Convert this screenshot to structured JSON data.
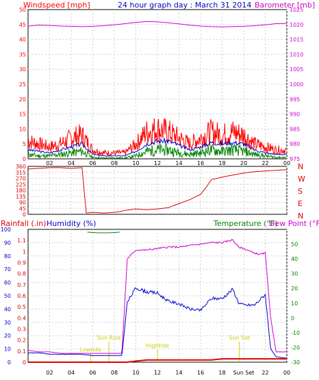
{
  "title": "24 hour graph day : March 31 2014",
  "colors": {
    "wind": "#ff0000",
    "windAvg": "#0000cc",
    "windLow": "#008000",
    "baro": "#cc00cc",
    "dir": "#dd0000",
    "rain": "#dd0000",
    "humidity": "#0000cc",
    "temp": "#008000",
    "dew": "#cc00cc",
    "marker": "#cccc00"
  },
  "chart_data": [
    {
      "type": "line",
      "left_label": "Windspeed [mph]",
      "right_label": "Barometer [mb]",
      "ylim_left": [
        0,
        50
      ],
      "ylim_right": [
        975,
        1025
      ],
      "left_ticks": [
        "0",
        "5",
        "10",
        "15",
        "20",
        "25",
        "30",
        "35",
        "40",
        "45",
        "50"
      ],
      "right_ticks": [
        "975",
        "980",
        "985",
        "990",
        "995",
        "1000",
        "1005",
        "1010",
        "1015",
        "1020",
        "1025"
      ],
      "x_ticks": [
        "02",
        "04",
        "06",
        "08",
        "10",
        "12",
        "14",
        "16",
        "18",
        "20",
        "22",
        "00"
      ],
      "x": [
        0,
        1,
        2,
        3,
        4,
        5,
        6,
        7,
        8,
        9,
        10,
        11,
        12,
        13,
        14,
        15,
        16,
        17,
        18,
        19,
        20,
        21,
        22,
        23,
        24
      ],
      "series": [
        {
          "key": "wind_gust",
          "values": [
            6,
            5,
            4,
            5,
            7,
            8,
            3,
            2,
            2,
            2,
            5,
            9,
            10,
            9,
            7,
            5,
            7,
            9,
            8,
            9,
            8,
            5,
            4,
            3,
            3
          ]
        },
        {
          "key": "wind_avg",
          "values": [
            3,
            2.5,
            2,
            3,
            4,
            5,
            1.5,
            1,
            1,
            1,
            2.5,
            5,
            6,
            6,
            4.5,
            3,
            4,
            5.5,
            5,
            5.5,
            5,
            3,
            2,
            1.5,
            1.5
          ]
        },
        {
          "key": "wind_low",
          "values": [
            1.5,
            1,
            1,
            1.5,
            2,
            2.5,
            0.5,
            0.3,
            0.3,
            0.3,
            1,
            2.5,
            3,
            3,
            2,
            1.5,
            2,
            3,
            2.5,
            3,
            2.5,
            1.5,
            1,
            0.5,
            0.5
          ]
        },
        {
          "key": "barometer",
          "values": [
            1019.5,
            1019.8,
            1019.7,
            1019.5,
            1019.4,
            1019.3,
            1019.4,
            1019.6,
            1019.9,
            1020.3,
            1020.7,
            1021,
            1020.9,
            1020.6,
            1020.2,
            1019.8,
            1019.5,
            1019.3,
            1019.2,
            1019.3,
            1019.4,
            1019.6,
            1019.9,
            1020.3,
            1020.4
          ]
        }
      ]
    },
    {
      "type": "line",
      "right_label": "Wind direction",
      "ylim": [
        0,
        360
      ],
      "left_ticks": [
        "0",
        "45",
        "90",
        "135",
        "180",
        "225",
        "270",
        "315",
        "360"
      ],
      "compass": [
        "N",
        "W",
        "S",
        "E",
        "N"
      ],
      "x": [
        0,
        1,
        2,
        3,
        4,
        5,
        5.4,
        6,
        7,
        8,
        8.5,
        9,
        10,
        11,
        12,
        13,
        14,
        15,
        16,
        16.5,
        17,
        18,
        19,
        20,
        21,
        22,
        23,
        24
      ],
      "series": [
        {
          "key": "direction",
          "values": [
            340,
            345,
            350,
            350,
            345,
            350,
            10,
            15,
            10,
            15,
            20,
            30,
            40,
            35,
            40,
            50,
            80,
            110,
            150,
            200,
            260,
            280,
            295,
            310,
            320,
            325,
            330,
            335
          ]
        }
      ]
    },
    {
      "type": "line",
      "left_label": "Rainfall (.in)",
      "left_label_2": "Humidity (%)",
      "right_label": "Temperature (°F)",
      "right_label_2": "Dew Point (°F)",
      "ylim_left": [
        0,
        100
      ],
      "ylim_rain": [
        0,
        1.2
      ],
      "ylim_right": [
        -30,
        60
      ],
      "left_ticks": [
        "0",
        "10",
        "20",
        "30",
        "40",
        "50",
        "60",
        "70",
        "80",
        "90",
        "100"
      ],
      "rain_ticks": [
        "0",
        "0.1",
        "0.2",
        "0.3",
        "0.4",
        "0.5",
        "0.6",
        "0.7",
        "0.8",
        "0.9",
        "1",
        "1.1"
      ],
      "right_ticks": [
        "-30",
        "-20",
        "-10",
        "0",
        "10",
        "20",
        "30",
        "40",
        "50"
      ],
      "x_ticks": [
        "02",
        "04",
        "06",
        "08",
        "10",
        "12",
        "14",
        "16",
        "18",
        "Sun Set",
        "22",
        "00"
      ],
      "markers": [
        {
          "label": "Sun Rise",
          "x": 7.5,
          "pos": 0.17
        },
        {
          "label": "Lowtide",
          "x": 5.8,
          "pos": 0.08
        },
        {
          "label": "Hightide",
          "x": 12.0,
          "pos": 0.11
        },
        {
          "label": "Sun Set",
          "x": 19.6,
          "pos": 0.17
        }
      ],
      "x": [
        0,
        1,
        2,
        3,
        4,
        5,
        6,
        7,
        8,
        8.7,
        9.2,
        10,
        11,
        12,
        13,
        14,
        15,
        16,
        17,
        18,
        19,
        19.5,
        20,
        21,
        21.5,
        22,
        22.5,
        23,
        24
      ],
      "series": [
        {
          "key": "temperature",
          "values": [
            -22,
            -23,
            -23,
            -24,
            -24,
            -24,
            -24,
            -24,
            -24,
            -24,
            40,
            46,
            46,
            47,
            48,
            48,
            49,
            50,
            51,
            51,
            53,
            48,
            47,
            44,
            43,
            44,
            0,
            -23,
            -23
          ]
        },
        {
          "key": "humidity",
          "values": [
            7,
            7,
            6,
            6,
            6,
            6,
            5,
            5,
            5,
            5,
            45,
            56,
            53,
            52,
            46,
            44,
            40,
            39,
            48,
            48,
            55,
            45,
            43,
            43,
            47,
            51,
            10,
            4,
            3
          ]
        },
        {
          "key": "rain",
          "values": [
            0,
            0,
            0,
            0,
            0,
            0,
            0,
            0,
            0,
            0,
            0,
            0.01,
            0.02,
            0.02,
            0.02,
            0.02,
            0.02,
            0.02,
            0.02,
            0.03,
            0.03,
            0.03,
            0.03,
            0.03,
            0.03,
            0.03,
            0.03,
            0.03,
            0.03
          ]
        },
        {
          "key": "dewpoint",
          "values": [
            null,
            null,
            null,
            null,
            null,
            null,
            null,
            null,
            null,
            null,
            null,
            null,
            null,
            null,
            null,
            null,
            null,
            null,
            null,
            null,
            null,
            null,
            null,
            null,
            null,
            null,
            null,
            null,
            null
          ],
          "visible_top": [
            58,
            57,
            57,
            58
          ]
        }
      ]
    }
  ]
}
